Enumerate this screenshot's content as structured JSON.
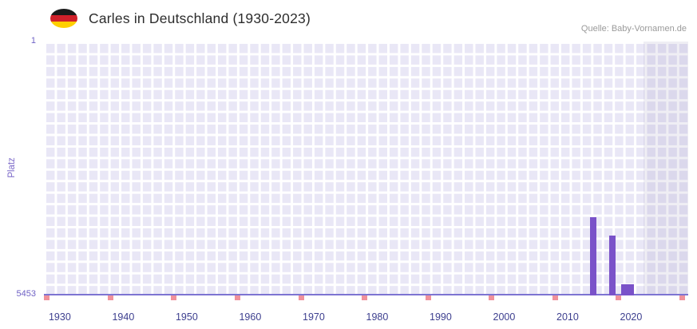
{
  "header": {
    "title": "Carles in Deutschland (1930-2023)",
    "source": "Quelle: Baby-Vornamen.de"
  },
  "chart_data": {
    "type": "bar",
    "title": "Carles in Deutschland (1930-2023)",
    "ylabel": "Platz",
    "xlabel": "",
    "y_axis": {
      "inverted": true,
      "top_rank": 1,
      "bottom_rank": 5453,
      "tick_labels": [
        "1",
        "5453"
      ]
    },
    "x_axis": {
      "range": [
        1927.5,
        2029
      ],
      "tick_years": [
        1930,
        1940,
        1950,
        1960,
        1970,
        1980,
        1990,
        2000,
        2010,
        2020
      ]
    },
    "bars": [
      {
        "year": 2014,
        "rank": 3800
      },
      {
        "year": 2017,
        "rank": 4200
      },
      {
        "year": 2019,
        "rank": 5250
      },
      {
        "year": 2020,
        "rank": 5250
      }
    ],
    "baseline_markers": {
      "start_year": 1928,
      "interval_years": 10,
      "end_year": 2028
    },
    "shaded_band": {
      "from_year": 2022,
      "to_year": 2029
    },
    "grid": true,
    "legend": false,
    "colors": {
      "bar": "#7a52c9",
      "baseline_marker": "#f0919b",
      "plot_background": "#e9e7f6",
      "grid_line": "#ffffff",
      "shaded_band": "rgba(99,89,143,0.10)",
      "axis_line": "#7d74d2",
      "x_tick_label": "#3d3f8f",
      "y_tick_label": "#6f62c5",
      "y_axis_label": "#7b68c8"
    }
  }
}
